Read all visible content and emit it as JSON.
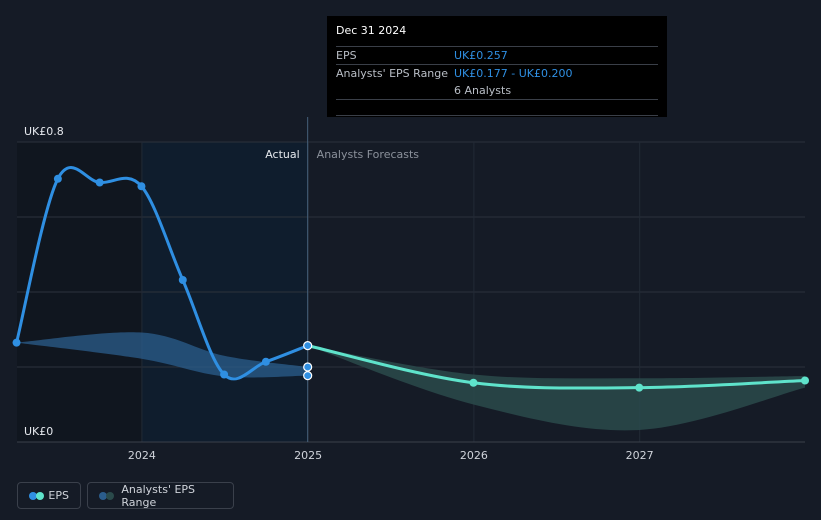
{
  "tooltip": {
    "date": "Dec 31 2024",
    "rows": [
      {
        "label": "EPS",
        "value": "UK£0.257"
      },
      {
        "label": "Analysts' EPS Range",
        "value": "UK£0.177 - UK£0.200"
      },
      {
        "label": "",
        "value": "6 Analysts"
      }
    ]
  },
  "labels": {
    "actual": "Actual",
    "forecast": "Analysts Forecasts"
  },
  "legend": {
    "eps": "EPS",
    "range": "Analysts' EPS Range"
  },
  "colors": {
    "background": "#151b26",
    "eps_actual": "#2f8fe2",
    "eps_forecast": "#5fe3cb",
    "range_actual": "#2b5d8c",
    "range_forecast": "#2a4a4b",
    "grid": "#2c323c"
  },
  "chart_data": {
    "type": "line",
    "ylim": [
      0,
      0.8
    ],
    "ytick_labels": [
      "UK£0",
      "UK£0.8"
    ],
    "xlim": [
      "2023-04-01",
      "2027-12-31"
    ],
    "xticks": [
      "2024",
      "2025",
      "2026",
      "2027"
    ],
    "divider_date": "2024-12-31",
    "grid": true,
    "series": [
      {
        "name": "EPS",
        "segment": "actual",
        "points": [
          [
            "2023-03-31",
            0.265
          ],
          [
            "2023-06-30",
            0.702
          ],
          [
            "2023-09-30",
            0.692
          ],
          [
            "2023-12-31",
            0.682
          ],
          [
            "2024-03-31",
            0.432
          ],
          [
            "2024-06-30",
            0.18
          ],
          [
            "2024-09-30",
            0.214
          ],
          [
            "2024-12-31",
            0.257
          ]
        ]
      },
      {
        "name": "EPS",
        "segment": "forecast",
        "points": [
          [
            "2024-12-31",
            0.257
          ],
          [
            "2025-12-31",
            0.158
          ],
          [
            "2026-12-31",
            0.145
          ],
          [
            "2027-12-31",
            0.164
          ]
        ]
      },
      {
        "name": "Analysts' EPS Range",
        "segment": "actual",
        "upper": [
          [
            "2023-03-31",
            0.265
          ],
          [
            "2023-12-31",
            0.292
          ],
          [
            "2024-06-30",
            0.23
          ],
          [
            "2024-12-31",
            0.2
          ]
        ],
        "lower": [
          [
            "2023-03-31",
            0.265
          ],
          [
            "2023-12-31",
            0.222
          ],
          [
            "2024-06-30",
            0.175
          ],
          [
            "2024-12-31",
            0.177
          ]
        ]
      },
      {
        "name": "Analysts' EPS Range",
        "segment": "forecast",
        "upper": [
          [
            "2024-12-31",
            0.257
          ],
          [
            "2025-12-31",
            0.18
          ],
          [
            "2026-12-31",
            0.17
          ],
          [
            "2027-12-31",
            0.176
          ]
        ],
        "lower": [
          [
            "2024-12-31",
            0.257
          ],
          [
            "2025-12-31",
            0.1
          ],
          [
            "2026-12-31",
            0.032
          ],
          [
            "2027-12-31",
            0.145
          ]
        ]
      }
    ],
    "tooltip_points": [
      [
        "2024-12-31",
        0.2
      ],
      [
        "2024-12-31",
        0.177
      ]
    ]
  }
}
